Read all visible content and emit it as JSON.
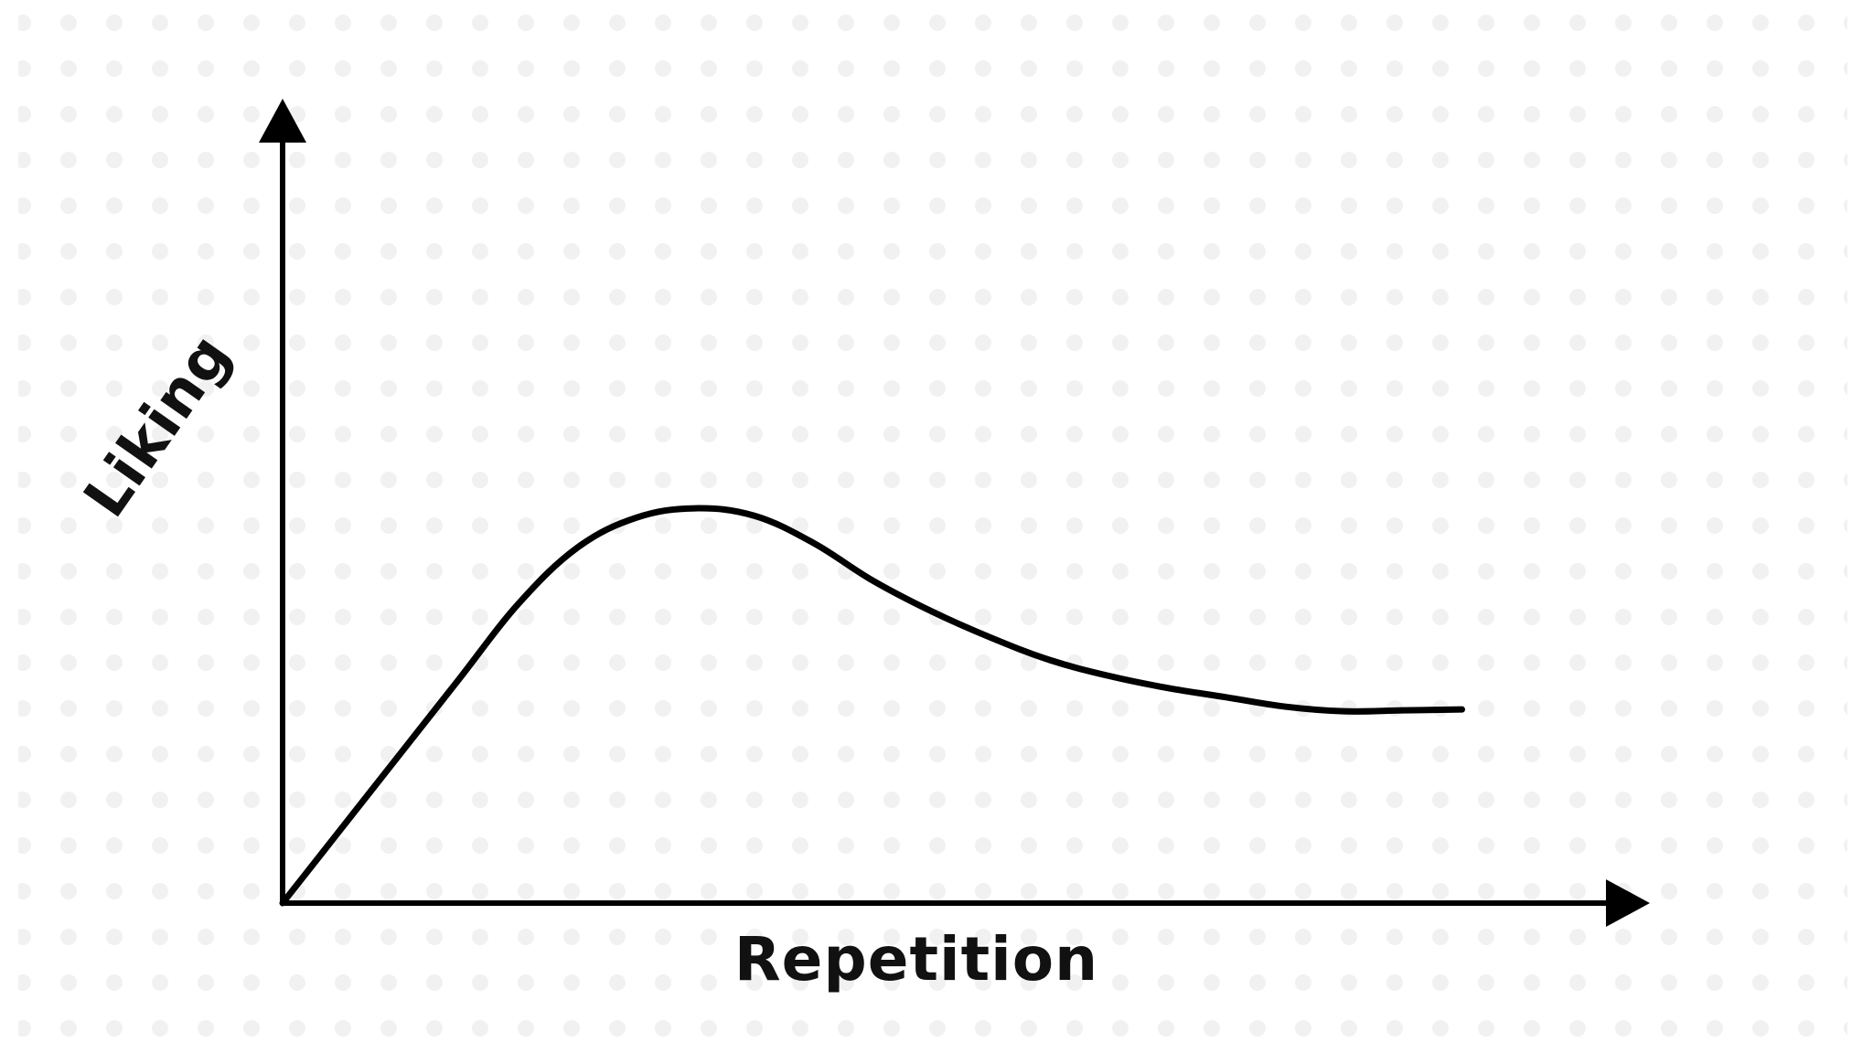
{
  "chart_data": {
    "type": "line",
    "xlabel": "Repetition",
    "ylabel": "Liking",
    "x": [
      0,
      0.5,
      1,
      1.5,
      2,
      2.5,
      3,
      3.5,
      4,
      4.5,
      5,
      5.5,
      6,
      6.5,
      7,
      7.5,
      8,
      8.5,
      9,
      9.5,
      10
    ],
    "series": [
      {
        "values": [
          0,
          0.8,
          1.6,
          2.4,
          3.2,
          3.8,
          4.12,
          4.22,
          4.14,
          3.85,
          3.45,
          3.12,
          2.84,
          2.6,
          2.43,
          2.3,
          2.2,
          2.1,
          2.05,
          2.06,
          2.07
        ]
      }
    ],
    "xlim": [
      0,
      11.5
    ],
    "ylim": [
      0,
      8.5
    ],
    "grid": false,
    "tick_labels": false
  },
  "colors": {
    "line": "#000000",
    "axis": "#000000",
    "background": "#ffffff",
    "pattern": "#f2f2f2"
  }
}
